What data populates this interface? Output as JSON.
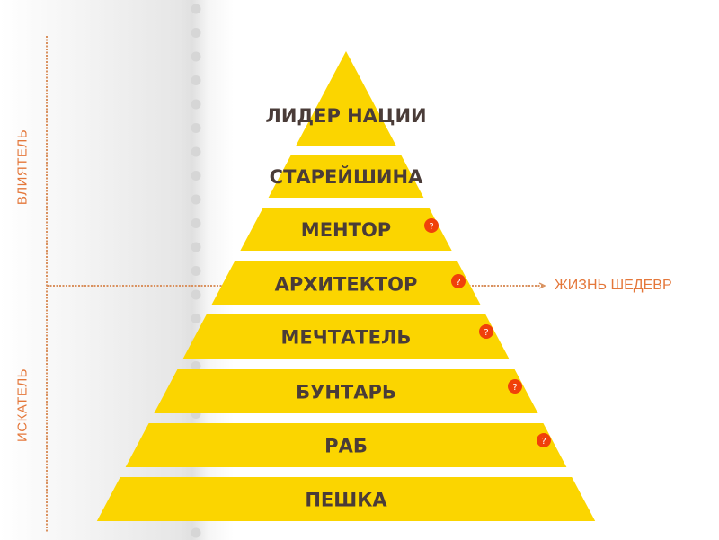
{
  "axis_labels": {
    "upper": "ВЛИЯТЕЛЬ",
    "lower": "ИСКАТЕЛЬ"
  },
  "threshold_label": "ЖИЗНЬ ШЕДЕВР",
  "levels": [
    {
      "label": "ЛИДЕР НАЦИИ",
      "has_help": false
    },
    {
      "label": "СТАРЕЙШИНА",
      "has_help": false
    },
    {
      "label": "МЕНТОР",
      "has_help": true
    },
    {
      "label": "АРХИТЕКТОР",
      "has_help": true
    },
    {
      "label": "МЕЧТАТЕЛЬ",
      "has_help": true
    },
    {
      "label": "БУНТАРЬ",
      "has_help": true
    },
    {
      "label": "РАБ",
      "has_help": true
    },
    {
      "label": "ПЕШКА",
      "has_help": false
    }
  ],
  "help_icon_text": "?",
  "colors": {
    "pyramid": "#fbd500",
    "help": "#f0400a",
    "accent": "#e4773a",
    "text": "#4a3c38"
  }
}
